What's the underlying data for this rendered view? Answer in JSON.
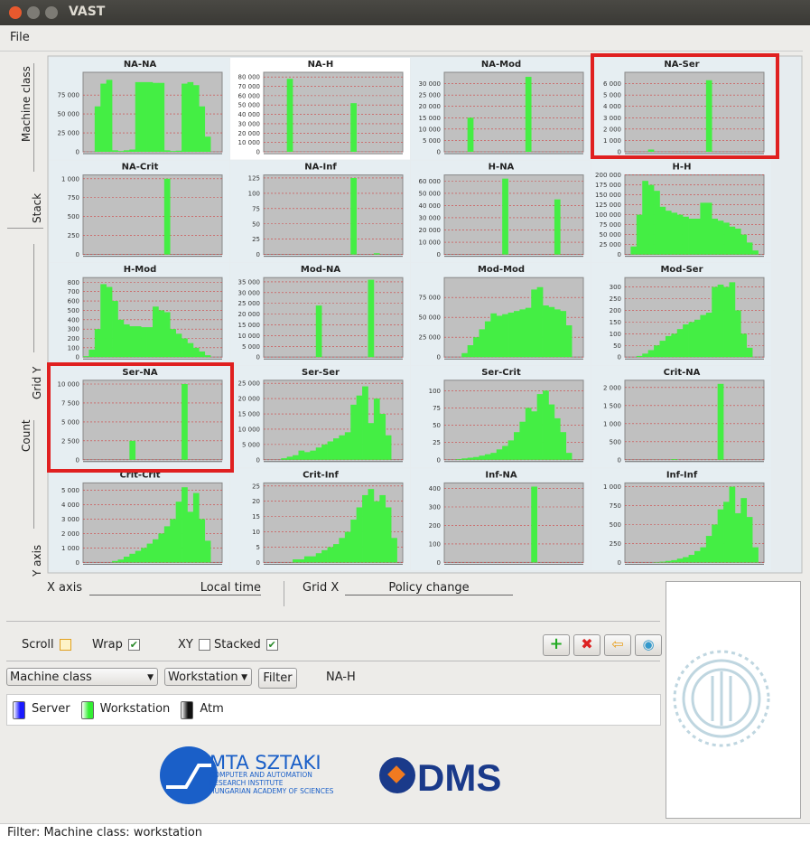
{
  "window": {
    "title": "VAST",
    "menu": [
      "File"
    ]
  },
  "side_labels": [
    "Machine class",
    "Stack",
    "Grid Y",
    "Count",
    "Y axis"
  ],
  "axes_controls": {
    "x_label": "X axis",
    "x_value": "Local time",
    "grid_x_label": "Grid X",
    "grid_x_value": "Policy change"
  },
  "controls": {
    "checkboxes": [
      {
        "label": "Scroll",
        "checked": false
      },
      {
        "label": "Wrap",
        "checked": true
      },
      {
        "label": "XY",
        "checked": false
      },
      {
        "label": "Stacked",
        "checked": true
      }
    ],
    "selects": [
      "Machine class",
      "Workstation"
    ],
    "filter_button": "Filter",
    "selected": "NA-H"
  },
  "legend": [
    {
      "name": "Server",
      "color": "#1a1aff"
    },
    {
      "name": "Workstation",
      "color": "#33ee33"
    },
    {
      "name": "Atm",
      "color": "#111111"
    }
  ],
  "logos": {
    "mta": "MTA SZTAKI",
    "mta_lines": [
      "COMPUTER AND AUTOMATION",
      "RESEARCH INSTITUTE",
      "HUNGARIAN ACADEMY OF SCIENCES"
    ],
    "dms": "DMS"
  },
  "status": "Filter:  Machine class: workstation",
  "chart_data": [
    {
      "type": "area",
      "title": "NA-NA",
      "color": "#44ee44",
      "ylim": [
        0,
        105000
      ],
      "yticks": [
        0,
        {
          "value": 25000,
          "label": "25 000"
        },
        {
          "value": 50000,
          "label": "50 000"
        },
        {
          "value": 75000,
          "label": "75 000"
        }
      ],
      "values": [
        0,
        0,
        60000,
        90000,
        95000,
        2000,
        1000,
        2000,
        3000,
        92000,
        92000,
        92000,
        91000,
        91000,
        2000,
        1000,
        1500,
        90000,
        92000,
        88000,
        60000,
        20000,
        0,
        0
      ]
    },
    {
      "type": "area",
      "title": "NA-H",
      "color": "#44ee44",
      "ylim": [
        0,
        85000
      ],
      "yticks": [
        0,
        {
          "value": 10000,
          "label": "10 000"
        },
        {
          "value": 20000,
          "label": "20 000"
        },
        {
          "value": 30000,
          "label": "30 000"
        },
        {
          "value": 40000,
          "label": "40 000"
        },
        {
          "value": 50000,
          "label": "50 000"
        },
        {
          "value": 60000,
          "label": "60 000"
        },
        {
          "value": 70000,
          "label": "70 000"
        },
        {
          "value": 80000,
          "label": "80 000"
        }
      ],
      "values": [
        0,
        0,
        0,
        0,
        78000,
        0,
        0,
        0,
        0,
        0,
        0,
        0,
        0,
        0,
        0,
        52000,
        0,
        0,
        0,
        0,
        0,
        0,
        0,
        0
      ]
    },
    {
      "type": "area",
      "title": "NA-Mod",
      "color": "#44ee44",
      "ylim": [
        0,
        35000
      ],
      "yticks": [
        0,
        {
          "value": 5000,
          "label": "5 000"
        },
        {
          "value": 10000,
          "label": "10 000"
        },
        {
          "value": 15000,
          "label": "15 000"
        },
        {
          "value": 20000,
          "label": "20 000"
        },
        {
          "value": 25000,
          "label": "25 000"
        },
        {
          "value": 30000,
          "label": "30 000"
        }
      ],
      "values": [
        0,
        0,
        0,
        0,
        15000,
        0,
        0,
        0,
        0,
        0,
        0,
        0,
        0,
        0,
        33000,
        0,
        0,
        0,
        0,
        0,
        0,
        0,
        0,
        0
      ]
    },
    {
      "type": "area",
      "title": "NA-Ser",
      "color": "#44ee44",
      "ylim": [
        0,
        7000
      ],
      "yticks": [
        0,
        {
          "value": 1000,
          "label": "1 000"
        },
        {
          "value": 2000,
          "label": "2 000"
        },
        {
          "value": 3000,
          "label": "3 000"
        },
        {
          "value": 4000,
          "label": "4 000"
        },
        {
          "value": 5000,
          "label": "5 000"
        },
        {
          "value": 6000,
          "label": "6 000"
        }
      ],
      "values": [
        0,
        0,
        0,
        0,
        200,
        0,
        0,
        0,
        0,
        0,
        0,
        0,
        0,
        0,
        6300,
        0,
        0,
        0,
        0,
        0,
        0,
        0,
        0,
        0
      ]
    },
    {
      "type": "area",
      "title": "NA-Crit",
      "color": "#44ee44",
      "ylim": [
        0,
        1050
      ],
      "yticks": [
        0,
        250,
        500,
        750,
        {
          "value": 1000,
          "label": "1 000"
        }
      ],
      "values": [
        0,
        0,
        0,
        0,
        0,
        0,
        0,
        0,
        0,
        0,
        0,
        0,
        0,
        0,
        1000,
        0,
        0,
        0,
        0,
        0,
        0,
        0,
        0,
        0
      ]
    },
    {
      "type": "area",
      "title": "NA-Inf",
      "color": "#44ee44",
      "ylim": [
        0,
        130
      ],
      "yticks": [
        0,
        25,
        50,
        75,
        100,
        125
      ],
      "values": [
        0,
        0,
        0,
        0,
        0,
        0,
        0,
        0,
        0,
        0,
        0,
        0,
        0,
        0,
        0,
        125,
        0,
        0,
        0,
        2,
        0,
        0,
        0,
        0
      ]
    },
    {
      "type": "area",
      "title": "H-NA",
      "color": "#44ee44",
      "ylim": [
        0,
        65000
      ],
      "yticks": [
        0,
        {
          "value": 10000,
          "label": "10 000"
        },
        {
          "value": 20000,
          "label": "20 000"
        },
        {
          "value": 30000,
          "label": "30 000"
        },
        {
          "value": 40000,
          "label": "40 000"
        },
        {
          "value": 50000,
          "label": "50 000"
        },
        {
          "value": 60000,
          "label": "60 000"
        }
      ],
      "values": [
        0,
        0,
        0,
        0,
        0,
        0,
        0,
        0,
        0,
        0,
        62000,
        0,
        0,
        0,
        0,
        0,
        0,
        0,
        0,
        45000,
        0,
        0,
        0,
        0
      ]
    },
    {
      "type": "area",
      "title": "H-H",
      "color": "#44ee44",
      "ylim": [
        0,
        200000
      ],
      "yticks": [
        0,
        {
          "value": 25000,
          "label": "25 000"
        },
        {
          "value": 50000,
          "label": "50 000"
        },
        {
          "value": 75000,
          "label": "75 000"
        },
        {
          "value": 100000,
          "label": "100 000"
        },
        {
          "value": 125000,
          "label": "125 000"
        },
        {
          "value": 150000,
          "label": "150 000"
        },
        {
          "value": 175000,
          "label": "175 000"
        },
        {
          "value": 200000,
          "label": "200 000"
        }
      ],
      "values": [
        0,
        20000,
        100000,
        185000,
        175000,
        160000,
        120000,
        110000,
        105000,
        100000,
        95000,
        90000,
        90000,
        130000,
        130000,
        90000,
        85000,
        80000,
        70000,
        65000,
        50000,
        30000,
        10000,
        0
      ]
    },
    {
      "type": "area",
      "title": "H-Mod",
      "color": "#44ee44",
      "ylim": [
        0,
        850
      ],
      "yticks": [
        0,
        100,
        200,
        300,
        400,
        500,
        600,
        700,
        800
      ],
      "values": [
        10,
        80,
        300,
        780,
        750,
        600,
        400,
        350,
        330,
        330,
        320,
        320,
        540,
        500,
        480,
        300,
        250,
        200,
        150,
        100,
        60,
        20,
        0,
        0
      ]
    },
    {
      "type": "area",
      "title": "Mod-NA",
      "color": "#44ee44",
      "ylim": [
        0,
        37000
      ],
      "yticks": [
        0,
        {
          "value": 5000,
          "label": "5 000"
        },
        {
          "value": 10000,
          "label": "10 000"
        },
        {
          "value": 15000,
          "label": "15 000"
        },
        {
          "value": 20000,
          "label": "20 000"
        },
        {
          "value": 25000,
          "label": "25 000"
        },
        {
          "value": 30000,
          "label": "30 000"
        },
        {
          "value": 35000,
          "label": "35 000"
        }
      ],
      "values": [
        0,
        0,
        0,
        0,
        0,
        0,
        0,
        0,
        0,
        24000,
        0,
        0,
        0,
        0,
        0,
        0,
        0,
        0,
        36000,
        0,
        0,
        0,
        0,
        0
      ]
    },
    {
      "type": "area",
      "title": "Mod-Mod",
      "color": "#44ee44",
      "ylim": [
        0,
        100000
      ],
      "yticks": [
        0,
        {
          "value": 25000,
          "label": "25 000"
        },
        {
          "value": 50000,
          "label": "50 000"
        },
        {
          "value": 75000,
          "label": "75 000"
        }
      ],
      "values": [
        0,
        0,
        0,
        5000,
        15000,
        25000,
        35000,
        45000,
        55000,
        52000,
        54000,
        56000,
        58000,
        60000,
        62000,
        85000,
        88000,
        65000,
        63000,
        60000,
        58000,
        40000,
        0,
        0
      ]
    },
    {
      "type": "area",
      "title": "Mod-Ser",
      "color": "#44ee44",
      "ylim": [
        0,
        340
      ],
      "yticks": [
        0,
        50,
        100,
        150,
        200,
        250,
        300
      ],
      "values": [
        0,
        0,
        5,
        15,
        30,
        50,
        70,
        90,
        100,
        120,
        140,
        150,
        160,
        180,
        190,
        300,
        310,
        300,
        320,
        200,
        100,
        40,
        0,
        0
      ]
    },
    {
      "type": "area",
      "title": "Ser-NA",
      "color": "#44ee44",
      "ylim": [
        0,
        10500
      ],
      "yticks": [
        0,
        {
          "value": 2500,
          "label": "2 500"
        },
        {
          "value": 5000,
          "label": "5 000"
        },
        {
          "value": 7500,
          "label": "7 500"
        },
        {
          "value": 10000,
          "label": "10 000"
        }
      ],
      "values": [
        0,
        0,
        0,
        0,
        0,
        0,
        0,
        0,
        2500,
        0,
        0,
        0,
        0,
        0,
        0,
        0,
        0,
        10000,
        0,
        0,
        0,
        0,
        0,
        0
      ]
    },
    {
      "type": "area",
      "title": "Ser-Ser",
      "color": "#44ee44",
      "ylim": [
        0,
        26000
      ],
      "yticks": [
        0,
        {
          "value": 5000,
          "label": "5 000"
        },
        {
          "value": 10000,
          "label": "10 000"
        },
        {
          "value": 15000,
          "label": "15 000"
        },
        {
          "value": 20000,
          "label": "20 000"
        },
        {
          "value": 25000,
          "label": "25 000"
        }
      ],
      "values": [
        0,
        0,
        0,
        500,
        1000,
        1500,
        3000,
        2500,
        3000,
        4000,
        5000,
        6000,
        7000,
        8000,
        9000,
        18000,
        21000,
        24000,
        12000,
        20000,
        15000,
        8000,
        0,
        0
      ]
    },
    {
      "type": "area",
      "title": "Ser-Crit",
      "color": "#44ee44",
      "ylim": [
        0,
        115
      ],
      "yticks": [
        0,
        25,
        50,
        75,
        100
      ],
      "values": [
        0,
        0,
        1,
        2,
        3,
        4,
        6,
        8,
        10,
        15,
        20,
        28,
        40,
        55,
        75,
        70,
        95,
        100,
        80,
        60,
        40,
        10,
        0,
        0
      ]
    },
    {
      "type": "area",
      "title": "Crit-NA",
      "color": "#44ee44",
      "ylim": [
        0,
        2200
      ],
      "yticks": [
        0,
        500,
        {
          "value": 1000,
          "label": "1 000"
        },
        {
          "value": 1500,
          "label": "1 500"
        },
        {
          "value": 2000,
          "label": "2 000"
        }
      ],
      "values": [
        0,
        0,
        0,
        0,
        0,
        0,
        0,
        0,
        20,
        0,
        0,
        0,
        0,
        0,
        0,
        0,
        2100,
        0,
        0,
        0,
        0,
        0,
        0,
        0
      ]
    },
    {
      "type": "area",
      "title": "Crit-Crit",
      "color": "#44ee44",
      "ylim": [
        0,
        5500
      ],
      "yticks": [
        0,
        {
          "value": 1000,
          "label": "1 000"
        },
        {
          "value": 2000,
          "label": "2 000"
        },
        {
          "value": 3000,
          "label": "3 000"
        },
        {
          "value": 4000,
          "label": "4 000"
        },
        {
          "value": 5000,
          "label": "5 000"
        }
      ],
      "values": [
        0,
        0,
        0,
        0,
        0,
        100,
        200,
        400,
        600,
        800,
        1000,
        1300,
        1600,
        2000,
        2500,
        3000,
        4200,
        5200,
        3500,
        4800,
        3000,
        1500,
        0,
        0
      ]
    },
    {
      "type": "area",
      "title": "Crit-Inf",
      "color": "#44ee44",
      "ylim": [
        0,
        26
      ],
      "yticks": [
        0,
        5,
        10,
        15,
        20,
        25
      ],
      "values": [
        0,
        0,
        0,
        0,
        0,
        1,
        1,
        2,
        2,
        3,
        4,
        5,
        6,
        8,
        10,
        14,
        18,
        22,
        24,
        20,
        22,
        18,
        8,
        0
      ]
    },
    {
      "type": "area",
      "title": "Inf-NA",
      "color": "#44ee44",
      "ylim": [
        0,
        430
      ],
      "yticks": [
        0,
        100,
        200,
        300,
        400
      ],
      "values": [
        0,
        0,
        0,
        0,
        0,
        0,
        0,
        0,
        0,
        0,
        0,
        0,
        0,
        0,
        0,
        410,
        0,
        0,
        0,
        0,
        0,
        0,
        0,
        0
      ]
    },
    {
      "type": "area",
      "title": "Inf-Inf",
      "color": "#44ee44",
      "ylim": [
        0,
        1050
      ],
      "yticks": [
        0,
        250,
        500,
        750,
        {
          "value": 1000,
          "label": "1 000"
        }
      ],
      "values": [
        0,
        0,
        0,
        0,
        0,
        5,
        10,
        20,
        30,
        50,
        70,
        100,
        150,
        200,
        350,
        500,
        700,
        800,
        1000,
        650,
        850,
        600,
        200,
        0
      ]
    }
  ]
}
